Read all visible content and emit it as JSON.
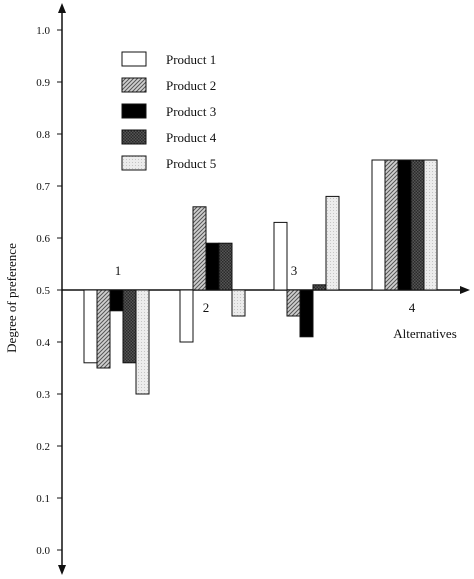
{
  "chart_data": {
    "type": "bar",
    "title": "",
    "xlabel": "Alternatives",
    "ylabel": "Degree of preference",
    "ylim": [
      0,
      1.0
    ],
    "baseline": 0.5,
    "y_ticks": [
      "0.0",
      "0.1",
      "0.2",
      "0.3",
      "0.4",
      "0.5",
      "0.6",
      "0.7",
      "0.8",
      "0.9",
      "1.0"
    ],
    "categories": [
      "1",
      "2",
      "3",
      "4"
    ],
    "series": [
      {
        "name": "Product 1",
        "values": [
          0.36,
          0.4,
          0.63,
          0.75
        ]
      },
      {
        "name": "Product 2",
        "values": [
          0.35,
          0.66,
          0.45,
          0.75
        ]
      },
      {
        "name": "Product 3",
        "values": [
          0.46,
          0.59,
          0.41,
          0.75
        ]
      },
      {
        "name": "Product 4",
        "values": [
          0.36,
          0.59,
          0.51,
          0.75
        ]
      },
      {
        "name": "Product 5",
        "values": [
          0.3,
          0.45,
          0.68,
          0.75
        ]
      }
    ],
    "legend_position": "top-left",
    "grid": false
  },
  "colors": {
    "product1": "#ffffff",
    "product2": "hatch-light",
    "product3": "#000000",
    "product4": "hatch-dark",
    "product5": "#e6e6e6"
  }
}
